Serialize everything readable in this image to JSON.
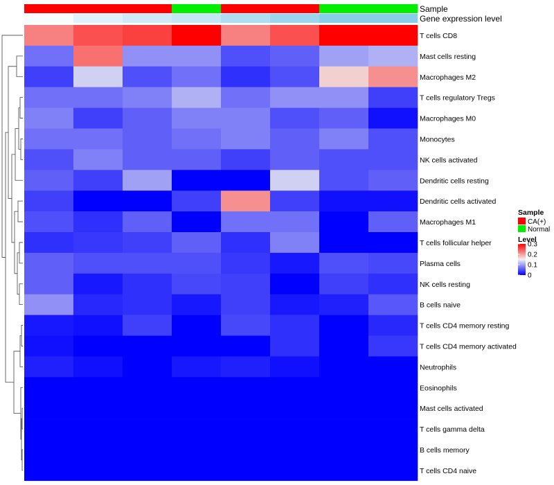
{
  "chart_data": {
    "type": "heatmap",
    "title": "",
    "column_annotations": {
      "sample_track_label": "Sample",
      "expression_track_label": "Gene expression level",
      "samples": [
        "CA(+)",
        "CA(+)",
        "CA(+)",
        "Normal",
        "CA(+)",
        "CA(+)",
        "Normal",
        "Normal"
      ],
      "gene_expression_level": [
        0.02,
        0.08,
        0.12,
        0.15,
        0.2,
        0.25,
        0.3,
        0.3
      ]
    },
    "rows": [
      "T cells CD8",
      "Mast cells resting",
      "Macrophages M2",
      "T cells regulatory  Tregs",
      "Macrophages M0",
      "Monocytes",
      "NK cells activated",
      "Dendritic cells resting",
      "Dendritic cells activated",
      "Macrophages M1",
      "T cells follicular helper",
      "Plasma cells",
      "NK cells resting",
      "B cells naive",
      "T cells CD4 memory resting",
      "T cells CD4 memory activated",
      "Neutrophils",
      "Eosinophils",
      "Mast cells activated",
      "T cells gamma delta",
      "B cells memory",
      "T cells CD4 naive"
    ],
    "values": [
      [
        0.22,
        0.25,
        0.26,
        0.3,
        0.22,
        0.25,
        0.3,
        0.3
      ],
      [
        0.07,
        0.23,
        0.09,
        0.09,
        0.05,
        0.06,
        0.1,
        0.11
      ],
      [
        0.04,
        0.13,
        0.05,
        0.07,
        0.03,
        0.05,
        0.17,
        0.21
      ],
      [
        0.07,
        0.07,
        0.08,
        0.11,
        0.07,
        0.09,
        0.09,
        0.04
      ],
      [
        0.08,
        0.04,
        0.06,
        0.08,
        0.08,
        0.05,
        0.06,
        0.01
      ],
      [
        0.07,
        0.07,
        0.06,
        0.07,
        0.08,
        0.06,
        0.08,
        0.05
      ],
      [
        0.05,
        0.08,
        0.06,
        0.06,
        0.04,
        0.06,
        0.05,
        0.05
      ],
      [
        0.06,
        0.04,
        0.1,
        0.0,
        0.0,
        0.13,
        0.05,
        0.06
      ],
      [
        0.04,
        0.0,
        0.0,
        0.04,
        0.21,
        0.04,
        0.01,
        0.01
      ],
      [
        0.05,
        0.03,
        0.06,
        0.0,
        0.07,
        0.07,
        0.0,
        0.06
      ],
      [
        0.03,
        0.035,
        0.04,
        0.06,
        0.03,
        0.08,
        0.0,
        0.0
      ],
      [
        0.06,
        0.05,
        0.05,
        0.05,
        0.035,
        0.015,
        0.05,
        0.045
      ],
      [
        0.06,
        0.015,
        0.03,
        0.045,
        0.04,
        0.0,
        0.04,
        0.03
      ],
      [
        0.09,
        0.025,
        0.03,
        0.015,
        0.04,
        0.015,
        0.02,
        0.055
      ],
      [
        0.015,
        0.01,
        0.04,
        0.0,
        0.045,
        0.03,
        0.0,
        0.025
      ],
      [
        0.01,
        0.0,
        0.0,
        0.0,
        0.0,
        0.03,
        0.0,
        0.035
      ],
      [
        0.02,
        0.01,
        0.0,
        0.015,
        0.02,
        0.01,
        0.0,
        0.0
      ],
      [
        0.0,
        0.0,
        0.0,
        0.0,
        0.0,
        0.0,
        0.0,
        0.0
      ],
      [
        0.0,
        0.0,
        0.0,
        0.0,
        0.0,
        0.0,
        0.0,
        0.0
      ],
      [
        0.0,
        0.0,
        0.0,
        0.0,
        0.0,
        0.0,
        0.0,
        0.0
      ],
      [
        0.0,
        0.0,
        0.0,
        0.0,
        0.0,
        0.0,
        0.0,
        0.0
      ],
      [
        0.0,
        0.0,
        0.0,
        0.0,
        0.0,
        0.0,
        0.0,
        0.0
      ]
    ],
    "color_scale": {
      "min": 0,
      "mid": 0.15,
      "max": 0.3,
      "low_color": "#0000ff",
      "mid_color": "#f0f0f0",
      "high_color": "#ff0000"
    },
    "legend": {
      "sample": {
        "title": "Sample",
        "items": [
          {
            "label": "CA(+)",
            "color": "#ff0000"
          },
          {
            "label": "Normal",
            "color": "#00ee00"
          }
        ]
      },
      "level": {
        "title": "Level",
        "ticks": [
          "0.3",
          "0.2",
          "0.1",
          "0"
        ],
        "tick_values": [
          0.3,
          0.2,
          0.1,
          0
        ]
      }
    },
    "expression_track_colors": {
      "low": "#ffffff",
      "high": "#87ceeb"
    },
    "dendrogram": "row-clustering"
  }
}
